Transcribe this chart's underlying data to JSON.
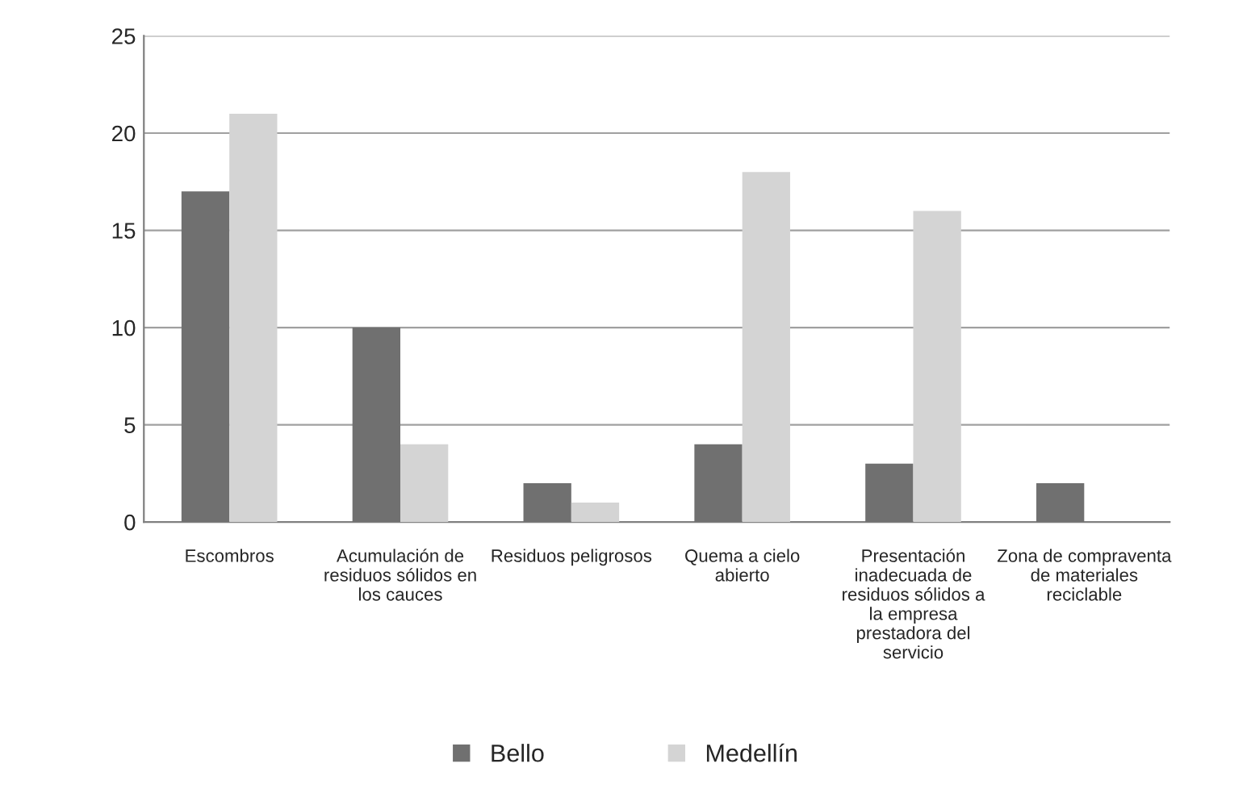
{
  "chart_data": {
    "type": "bar",
    "categories": [
      "Escombros",
      "Acumulación de residuos sólidos en los cauces",
      "Residuos peligrosos",
      "Quema a cielo abierto",
      "Presentación inadecuada de residuos sólidos a la empresa prestadora del servicio",
      "Zona de compraventa de materiales reciclable"
    ],
    "series": [
      {
        "name": "Bello",
        "color": "#707070",
        "values": [
          17,
          10,
          2,
          4,
          3,
          2
        ]
      },
      {
        "name": "Medellín",
        "color": "#d4d4d4",
        "values": [
          21,
          4,
          1,
          18,
          16,
          null
        ]
      }
    ],
    "ylim": [
      0,
      25
    ],
    "yticks": [
      0,
      5,
      10,
      15,
      20,
      25
    ],
    "grid": "y",
    "legend": "bottom"
  }
}
